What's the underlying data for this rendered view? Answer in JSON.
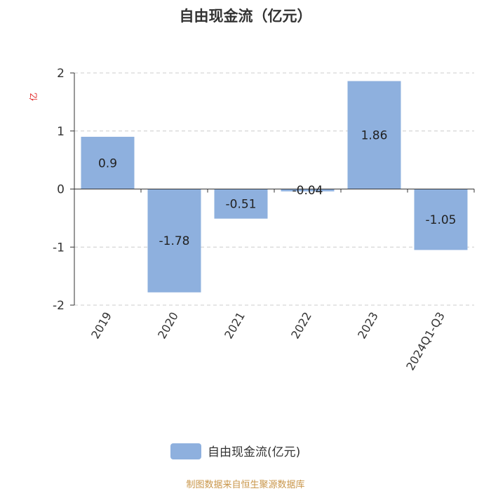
{
  "chart_data": {
    "type": "bar",
    "title": "自由现金流（亿元）",
    "ylabel": "亿",
    "categories": [
      "2019",
      "2020",
      "2021",
      "2022",
      "2023",
      "2024Q1-Q3"
    ],
    "series": [
      {
        "name": "自由现金流(亿元)",
        "values": [
          0.9,
          -1.78,
          -0.51,
          -0.04,
          1.86,
          -1.05
        ]
      }
    ],
    "data_labels": [
      "0.9",
      "-1.78",
      "-0.51",
      "-0.04",
      "1.86",
      "-1.05"
    ],
    "yticks": [
      -2,
      -1,
      0,
      1,
      2
    ],
    "ytick_labels": [
      "-2",
      "-1",
      "0",
      "1",
      "2"
    ],
    "ylim": [
      -2,
      2
    ],
    "grid": true,
    "legend_position": "bottom-center",
    "bar_color": "#8eb0de"
  },
  "source": "制图数据来自恒生聚源数据库"
}
